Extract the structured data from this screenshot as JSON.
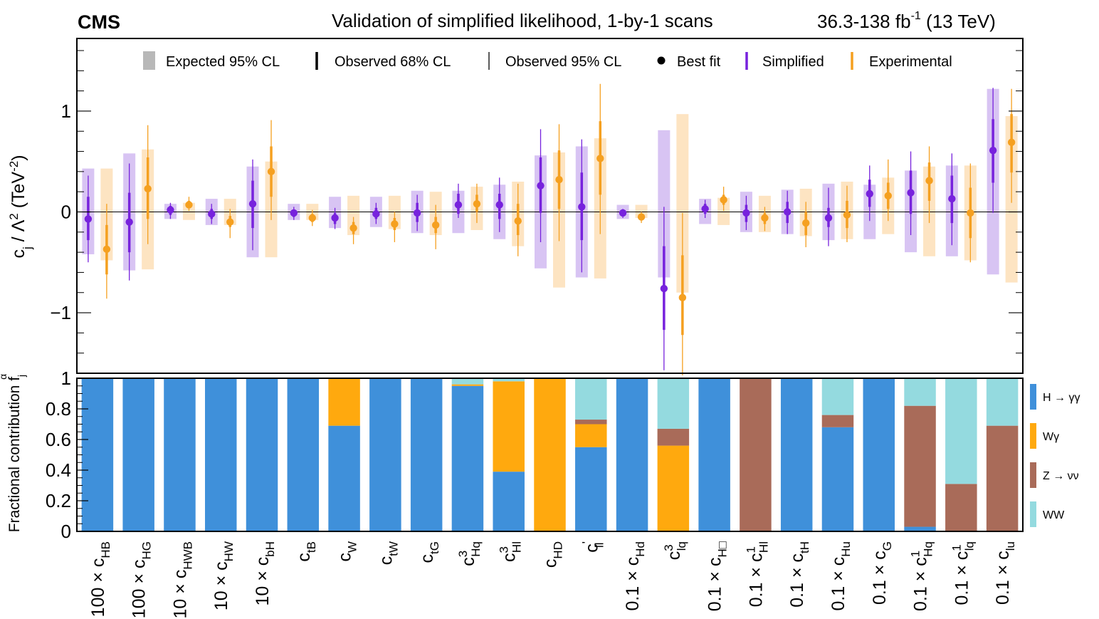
{
  "header": {
    "experiment": "CMS",
    "title": "Validation of simplified likelihood, 1-by-1 scans",
    "lumi_base": "36.3-138 fb",
    "lumi_exp": "-1",
    "lumi_energy": "(13 TeV)"
  },
  "colors": {
    "simplified": "#7722dd",
    "simplified_band": "#d8c4f3",
    "experimental": "#f5a020",
    "experimental_band": "#fde4c2",
    "expected_legend": "#b8b8b8",
    "hgg": "#3f90da",
    "wgamma": "#ffa90e",
    "zvv": "#a96b59",
    "ww": "#94dadf"
  },
  "legend_top": [
    {
      "key": "expected",
      "label": "Expected 95% CL"
    },
    {
      "key": "obs68",
      "label": "Observed 68% CL"
    },
    {
      "key": "obs95",
      "label": "Observed 95% CL"
    },
    {
      "key": "best",
      "label": "Best fit"
    },
    {
      "key": "simplified",
      "label": "Simplified"
    },
    {
      "key": "experimental",
      "label": "Experimental"
    }
  ],
  "legend_bottom": [
    {
      "key": "hgg",
      "label": "H → γγ"
    },
    {
      "key": "wgamma",
      "label": "Wγ"
    },
    {
      "key": "zvv",
      "label": "Z → νν"
    },
    {
      "key": "ww",
      "label": "WW"
    }
  ],
  "chart_data": [
    {
      "type": "scatter",
      "title": "Validation of simplified likelihood, 1-by-1 scans",
      "ylabel": "c_j / Λ^2 (TeV^-2)",
      "ylim": [
        -1.6,
        1.72
      ],
      "yticks": [
        "−1",
        "0",
        "1"
      ],
      "ytick_values": [
        -1,
        0,
        1
      ],
      "categories": [
        "100 × c_HB",
        "100 × c_HG",
        "10 × c_HWB",
        "10 × c_HW",
        "10 × c_bH",
        "c_tB",
        "c_W",
        "c_tW",
        "c_tG",
        "c^3_Hq",
        "c^3_Hl",
        "c_HD",
        "c'_ll",
        "0.1 × c_Hd",
        "c^3_lq",
        "0.1 × c_H□",
        "0.1 × c^1_Hl",
        "0.1 × c_tH",
        "0.1 × c_Hu",
        "0.1 × c_G",
        "0.1 × c^1_Hq",
        "0.1 × c^1_lq",
        "0.1 × c_lu"
      ],
      "series": [
        {
          "name": "Simplified",
          "best_fit": [
            -0.07,
            -0.1,
            0.02,
            -0.02,
            0.08,
            -0.01,
            -0.06,
            -0.02,
            -0.01,
            0.07,
            0.07,
            0.26,
            0.05,
            -0.01,
            -0.76,
            0.03,
            -0.01,
            0.0,
            -0.06,
            0.18,
            0.19,
            0.13,
            0.61
          ],
          "obs68_low": [
            -0.28,
            -0.4,
            -0.03,
            -0.07,
            -0.16,
            -0.05,
            -0.12,
            -0.07,
            -0.1,
            -0.02,
            -0.07,
            -0.01,
            -0.28,
            -0.04,
            -1.17,
            -0.02,
            -0.1,
            -0.11,
            -0.15,
            0.05,
            -0.02,
            -0.11,
            0.29
          ],
          "obs68_high": [
            0.15,
            0.19,
            0.06,
            0.03,
            0.31,
            0.02,
            -0.01,
            0.04,
            0.09,
            0.18,
            0.18,
            0.54,
            0.39,
            0.01,
            -0.34,
            0.08,
            0.07,
            0.1,
            0.04,
            0.32,
            0.41,
            0.36,
            0.92
          ],
          "obs95_low": [
            -0.5,
            -0.68,
            -0.07,
            -0.12,
            -0.38,
            -0.08,
            -0.17,
            -0.12,
            -0.19,
            -0.06,
            -0.2,
            -0.3,
            -0.6,
            -0.06,
            -1.57,
            -0.06,
            -0.18,
            -0.22,
            -0.34,
            -0.09,
            -0.23,
            -0.33,
            -0.01
          ],
          "obs95_high": [
            0.36,
            0.48,
            0.09,
            0.08,
            0.52,
            0.05,
            0.04,
            0.09,
            0.17,
            0.28,
            0.34,
            0.82,
            0.72,
            0.03,
            0.05,
            0.12,
            0.16,
            0.21,
            0.24,
            0.46,
            0.6,
            0.58,
            1.23
          ],
          "exp95_low": [
            -0.42,
            -0.58,
            -0.07,
            -0.13,
            -0.45,
            -0.08,
            -0.16,
            -0.15,
            -0.21,
            -0.21,
            -0.27,
            -0.56,
            -0.65,
            -0.07,
            -0.65,
            -0.12,
            -0.2,
            -0.22,
            -0.28,
            -0.27,
            -0.4,
            -0.44,
            -0.62
          ],
          "exp95_high": [
            0.43,
            0.58,
            0.08,
            0.13,
            0.45,
            0.08,
            0.15,
            0.15,
            0.21,
            0.21,
            0.27,
            0.56,
            0.65,
            0.07,
            0.81,
            0.13,
            0.2,
            0.22,
            0.28,
            0.27,
            0.41,
            0.46,
            1.22
          ]
        },
        {
          "name": "Experimental",
          "best_fit": [
            -0.37,
            0.23,
            0.07,
            -0.1,
            0.4,
            -0.06,
            -0.16,
            -0.12,
            -0.13,
            0.08,
            -0.09,
            0.32,
            0.53,
            -0.05,
            -0.85,
            0.12,
            -0.06,
            -0.11,
            -0.03,
            0.16,
            0.31,
            -0.01,
            0.69
          ],
          "obs68_low": [
            -0.62,
            -0.07,
            0.04,
            -0.15,
            0.15,
            -0.1,
            -0.22,
            -0.18,
            -0.21,
            0.0,
            -0.23,
            0.03,
            0.17,
            -0.08,
            -1.22,
            0.07,
            -0.12,
            -0.23,
            -0.16,
            0.03,
            0.11,
            -0.26,
            0.39
          ],
          "obs68_high": [
            -0.13,
            0.54,
            0.11,
            -0.04,
            0.65,
            -0.02,
            -0.1,
            -0.06,
            -0.05,
            0.17,
            0.08,
            0.61,
            0.9,
            -0.02,
            -0.43,
            0.17,
            -0.01,
            0.0,
            0.11,
            0.29,
            0.49,
            0.24,
            0.97
          ],
          "obs95_low": [
            -0.86,
            -0.32,
            0.01,
            -0.26,
            -0.08,
            -0.14,
            -0.32,
            -0.3,
            -0.37,
            -0.11,
            -0.44,
            -0.29,
            -0.22,
            -0.11,
            -1.62,
            0.01,
            -0.19,
            -0.35,
            -0.3,
            -0.09,
            -0.11,
            -0.5,
            0.09
          ],
          "obs95_high": [
            0.08,
            0.86,
            0.15,
            0.03,
            0.91,
            0.02,
            -0.05,
            0.0,
            0.07,
            0.28,
            0.28,
            0.87,
            1.27,
            0.0,
            -0.01,
            0.25,
            0.05,
            0.1,
            0.26,
            0.52,
            0.65,
            0.48,
            1.22
          ],
          "exp95_low": [
            -0.48,
            -0.57,
            -0.08,
            -0.13,
            -0.45,
            -0.08,
            -0.23,
            -0.17,
            -0.23,
            -0.18,
            -0.34,
            -0.75,
            -0.66,
            -0.06,
            -0.8,
            -0.13,
            -0.2,
            -0.24,
            -0.27,
            -0.22,
            -0.44,
            -0.48,
            -0.7
          ],
          "exp95_high": [
            0.43,
            0.62,
            0.09,
            0.13,
            0.5,
            0.08,
            0.16,
            0.16,
            0.2,
            0.25,
            0.3,
            0.59,
            0.73,
            0.07,
            0.97,
            0.14,
            0.16,
            0.23,
            0.3,
            0.34,
            0.45,
            0.46,
            0.95
          ]
        }
      ]
    },
    {
      "type": "bar",
      "stacked": true,
      "ylabel": "Fractional contribution f_j^α",
      "ylim": [
        0,
        1
      ],
      "yticks": [
        "0",
        "0.2",
        "0.4",
        "0.6",
        "0.8",
        "1"
      ],
      "ytick_values": [
        0,
        0.2,
        0.4,
        0.6,
        0.8,
        1
      ],
      "categories": [
        "100 × c_HB",
        "100 × c_HG",
        "10 × c_HWB",
        "10 × c_HW",
        "10 × c_bH",
        "c_tB",
        "c_W",
        "c_tW",
        "c_tG",
        "c^3_Hq",
        "c^3_Hl",
        "c_HD",
        "c'_ll",
        "0.1 × c_Hd",
        "c^3_lq",
        "0.1 × c_H□",
        "0.1 × c^1_Hl",
        "0.1 × c_tH",
        "0.1 × c_Hu",
        "0.1 × c_G",
        "0.1 × c^1_Hq",
        "0.1 × c^1_lq",
        "0.1 × c_lu"
      ],
      "series": [
        {
          "name": "H → γγ",
          "values": [
            1.0,
            1.0,
            1.0,
            1.0,
            1.0,
            1.0,
            0.69,
            1.0,
            1.0,
            0.95,
            0.39,
            0.0,
            0.55,
            1.0,
            0.0,
            1.0,
            0.0,
            1.0,
            0.68,
            1.0,
            0.03,
            0.0,
            0.0
          ]
        },
        {
          "name": "Wγ",
          "values": [
            0,
            0,
            0,
            0,
            0,
            0,
            0.31,
            0,
            0,
            0.01,
            0.59,
            1.0,
            0.15,
            0,
            0.56,
            0,
            0,
            0,
            0,
            0,
            0,
            0,
            0
          ]
        },
        {
          "name": "Z → νν",
          "values": [
            0,
            0,
            0,
            0,
            0,
            0,
            0,
            0,
            0,
            0,
            0,
            0,
            0.03,
            0,
            0.11,
            0,
            1.0,
            0,
            0.08,
            0,
            0.79,
            0.31,
            0.69
          ]
        },
        {
          "name": "WW",
          "values": [
            0,
            0,
            0,
            0,
            0,
            0,
            0,
            0,
            0,
            0.04,
            0.02,
            0,
            0.27,
            0,
            0.33,
            0,
            0,
            0,
            0.24,
            0,
            0.18,
            0.69,
            0.31
          ]
        }
      ]
    }
  ],
  "x_labels": [
    {
      "pre": "100 × ",
      "base": "c",
      "sub": "HB",
      "sup": ""
    },
    {
      "pre": "100 × ",
      "base": "c",
      "sub": "HG",
      "sup": ""
    },
    {
      "pre": "10 × ",
      "base": "c",
      "sub": "HWB",
      "sup": ""
    },
    {
      "pre": "10 × ",
      "base": "c",
      "sub": "HW",
      "sup": ""
    },
    {
      "pre": "10 × ",
      "base": "c",
      "sub": "bH",
      "sup": ""
    },
    {
      "pre": "",
      "base": "c",
      "sub": "tB",
      "sup": ""
    },
    {
      "pre": "",
      "base": "c",
      "sub": "W",
      "sup": ""
    },
    {
      "pre": "",
      "base": "c",
      "sub": "tW",
      "sup": ""
    },
    {
      "pre": "",
      "base": "c",
      "sub": "tG",
      "sup": ""
    },
    {
      "pre": "",
      "base": "c",
      "sub": "Hq",
      "sup": "3"
    },
    {
      "pre": "",
      "base": "c",
      "sub": "Hl",
      "sup": "3"
    },
    {
      "pre": "",
      "base": "c",
      "sub": "HD",
      "sup": ""
    },
    {
      "pre": "",
      "base": "c",
      "sub": "ll",
      "sup": "'"
    },
    {
      "pre": "0.1 × ",
      "base": "c",
      "sub": "Hd",
      "sup": ""
    },
    {
      "pre": "",
      "base": "c",
      "sub": "lq",
      "sup": "3"
    },
    {
      "pre": "0.1 × ",
      "base": "c",
      "sub": "H□",
      "sup": ""
    },
    {
      "pre": "0.1 × ",
      "base": "c",
      "sub": "Hl",
      "sup": "1"
    },
    {
      "pre": "0.1 × ",
      "base": "c",
      "sub": "tH",
      "sup": ""
    },
    {
      "pre": "0.1 × ",
      "base": "c",
      "sub": "Hu",
      "sup": ""
    },
    {
      "pre": "0.1 × ",
      "base": "c",
      "sub": "G",
      "sup": ""
    },
    {
      "pre": "0.1 × ",
      "base": "c",
      "sub": "Hq",
      "sup": "1"
    },
    {
      "pre": "0.1 × ",
      "base": "c",
      "sub": "lq",
      "sup": "1"
    },
    {
      "pre": "0.1 × ",
      "base": "c",
      "sub": "lu",
      "sup": ""
    }
  ]
}
